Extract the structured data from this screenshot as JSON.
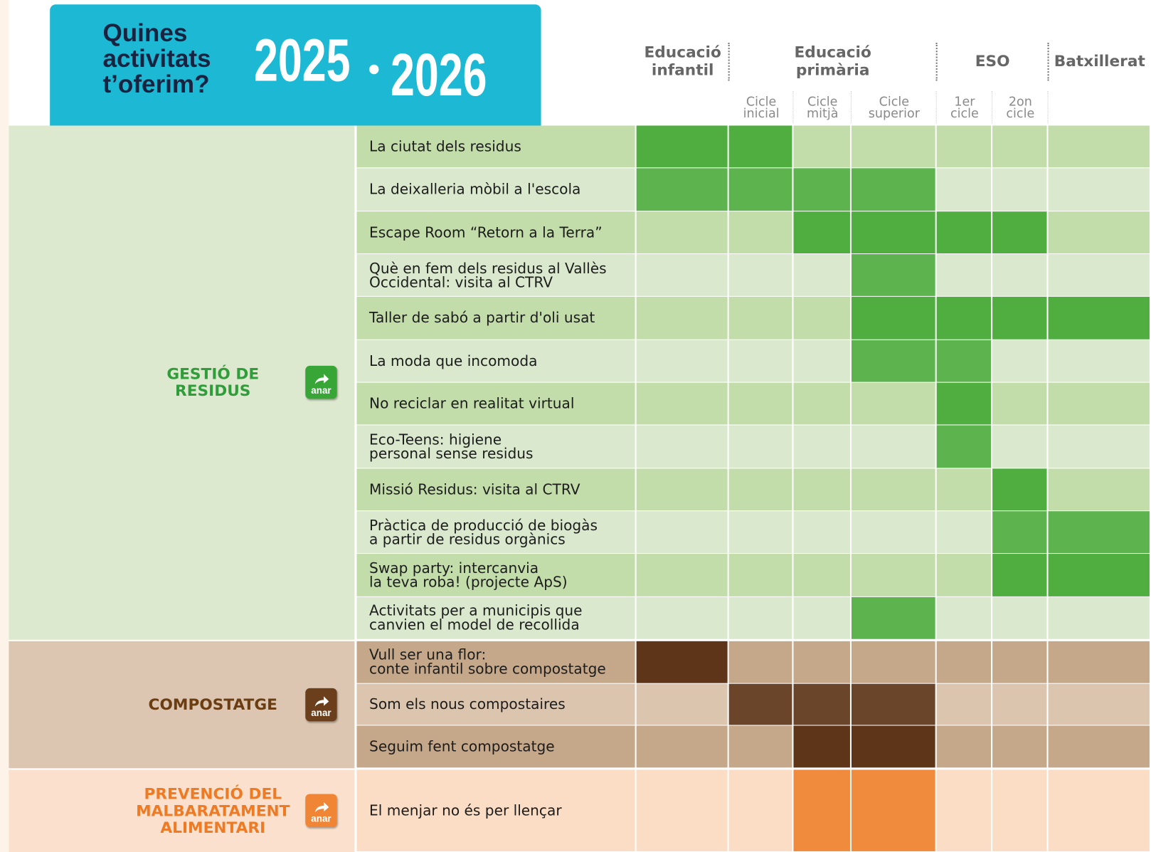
{
  "header": {
    "title": "Quines\nactivitats\nt’oferim?",
    "year_start": "2025",
    "year_end": "2026"
  },
  "column_groups": [
    {
      "label": "Educació\ninfantil"
    },
    {
      "label": "Educació\nprimària",
      "subcolumns": [
        "Cicle\ninicial",
        "Cicle\nmitjà",
        "Cicle\nsuperior"
      ]
    },
    {
      "label": "ESO",
      "subcolumns": [
        "1er\ncicle",
        "2on\ncicle"
      ]
    },
    {
      "label": "Batxillerat"
    }
  ],
  "sections": [
    {
      "name": "GESTIÓ DE\nRESIDUS",
      "button": "anar",
      "color": "#4fae3f",
      "activities": [
        {
          "name": "La ciutat dels residus",
          "offered": [
            true,
            true,
            false,
            false,
            false,
            false,
            false
          ]
        },
        {
          "name": "La deixalleria mòbil a l'escola",
          "offered": [
            true,
            true,
            true,
            true,
            false,
            false,
            false
          ]
        },
        {
          "name": "Escape Room “Retorn a la Terra”",
          "offered": [
            false,
            false,
            true,
            true,
            true,
            true,
            false
          ]
        },
        {
          "name": "Què en fem dels residus al Vallès\nOccidental: visita al CTRV",
          "offered": [
            false,
            false,
            false,
            true,
            false,
            false,
            false
          ]
        },
        {
          "name": "Taller de sabó a partir d'oli usat",
          "offered": [
            false,
            false,
            false,
            true,
            true,
            true,
            true
          ]
        },
        {
          "name": "La moda que incomoda",
          "offered": [
            false,
            false,
            false,
            true,
            true,
            false,
            false
          ]
        },
        {
          "name": "No reciclar en realitat virtual",
          "offered": [
            false,
            false,
            false,
            false,
            true,
            false,
            false
          ]
        },
        {
          "name": "Eco-Teens: higiene\npersonal sense residus",
          "offered": [
            false,
            false,
            false,
            false,
            true,
            false,
            false
          ]
        },
        {
          "name": "Missió Residus: visita al CTRV",
          "offered": [
            false,
            false,
            false,
            false,
            false,
            true,
            false
          ]
        },
        {
          "name": "Pràctica de producció de biogàs\na partir de residus orgànics",
          "offered": [
            false,
            false,
            false,
            false,
            false,
            true,
            true
          ]
        },
        {
          "name": "Swap party: intercanvia\nla teva roba! (projecte ApS)",
          "offered": [
            false,
            false,
            false,
            false,
            false,
            true,
            true
          ]
        },
        {
          "name": "Activitats per a municipis que\ncanvien el model de recollida",
          "offered": [
            false,
            false,
            false,
            true,
            false,
            false,
            false
          ]
        }
      ]
    },
    {
      "name": "COMPOSTATGE",
      "button": "anar",
      "color": "#5e3518",
      "activities": [
        {
          "name": "Vull ser una flor:\nconte infantil sobre compostatge",
          "offered": [
            true,
            false,
            false,
            false,
            false,
            false,
            false
          ]
        },
        {
          "name": "Som els nous compostaires",
          "offered": [
            false,
            true,
            true,
            true,
            false,
            false,
            false
          ]
        },
        {
          "name": "Seguim fent compostatge",
          "offered": [
            false,
            false,
            true,
            true,
            false,
            false,
            false
          ]
        }
      ]
    },
    {
      "name": "PREVENCIÓ DEL\nMALBARATAMENT\nALIMENTARI",
      "button": "anar",
      "color": "#f08a3c",
      "activities": [
        {
          "name": "El menjar no és per llençar",
          "offered": [
            false,
            false,
            true,
            true,
            false,
            false,
            false
          ]
        }
      ]
    }
  ]
}
